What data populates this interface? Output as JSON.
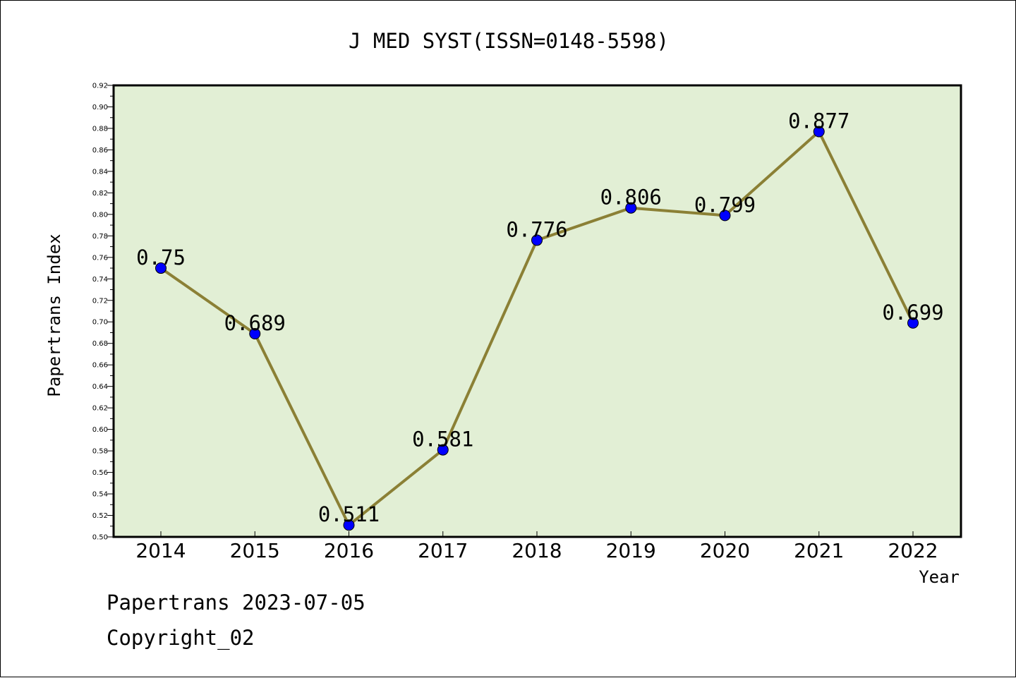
{
  "chart_data": {
    "type": "line",
    "title": "J MED SYST(ISSN=0148-5598)",
    "xlabel": "Year",
    "ylabel": "Papertrans Index",
    "categories": [
      "2014",
      "2015",
      "2016",
      "2017",
      "2018",
      "2019",
      "2020",
      "2021",
      "2022"
    ],
    "values": [
      0.75,
      0.689,
      0.511,
      0.581,
      0.776,
      0.806,
      0.799,
      0.877,
      0.699
    ],
    "data_labels": [
      "0.75",
      "0.689",
      "0.511",
      "0.581",
      "0.776",
      "0.806",
      "0.799",
      "0.877",
      "0.699"
    ],
    "y_ticks": [
      "0.50",
      "0.52",
      "0.54",
      "0.56",
      "0.58",
      "0.60",
      "0.62",
      "0.64",
      "0.66",
      "0.68",
      "0.70",
      "0.72",
      "0.74",
      "0.76",
      "0.78",
      "0.80",
      "0.82",
      "0.84",
      "0.86",
      "0.88",
      "0.90",
      "0.92"
    ],
    "ylim": [
      0.5,
      0.92
    ],
    "grid": false,
    "legend": "none",
    "colors": {
      "plot_background": "#e2efd5",
      "line": "#8b8035",
      "marker": "#0000ff"
    }
  },
  "footer": {
    "date_text": "Papertrans 2023-07-05",
    "copyright_text": "Copyright_02"
  }
}
